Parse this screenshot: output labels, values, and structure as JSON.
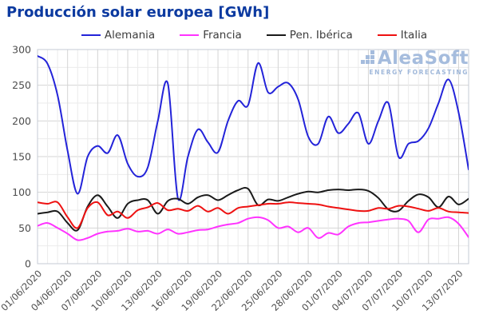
{
  "title": "Producción solar europea [GWh]",
  "watermark": {
    "name": "AleaSoft",
    "tagline": "ENERGY FORECASTING"
  },
  "colors": {
    "title": "#0c3aa0",
    "axis_text": "#4d4d4d",
    "grid_minor": "#ebebeb",
    "grid_major": "#d4d4d4",
    "plot_border": "#c6cbd4",
    "watermark": "#a5bcdd"
  },
  "chart_data": {
    "type": "line",
    "title": "Producción solar europea [GWh]",
    "unit": "GWh",
    "x_start": "01/06/2020",
    "x_end": "14/07/2020",
    "frequency": "daily",
    "ylim": [
      0,
      300
    ],
    "y_ticks": [
      0,
      50,
      100,
      150,
      200,
      250,
      300
    ],
    "y_minor_step": 25,
    "x_tick_labels": [
      "01/06/2020",
      "04/06/2020",
      "07/06/2020",
      "10/06/2020",
      "13/06/2020",
      "16/06/2020",
      "19/06/2020",
      "22/06/2020",
      "25/06/2020",
      "28/06/2020",
      "01/07/2020",
      "04/07/2020",
      "07/07/2020",
      "10/07/2020",
      "13/07/2020"
    ],
    "x_tick_days": [
      0,
      3,
      6,
      9,
      12,
      15,
      18,
      21,
      24,
      27,
      30,
      33,
      36,
      39,
      42
    ],
    "grid": "on",
    "legend_position": "top",
    "series": [
      {
        "name": "Alemania",
        "color": "#2323d9",
        "values": [
          291,
          280,
          236,
          158,
          98,
          150,
          165,
          155,
          180,
          140,
          122,
          135,
          200,
          252,
          92,
          150,
          188,
          170,
          156,
          200,
          228,
          222,
          281,
          240,
          248,
          253,
          230,
          178,
          168,
          206,
          183,
          196,
          211,
          168,
          200,
          225,
          150,
          168,
          172,
          190,
          225,
          258,
          212,
          132
        ]
      },
      {
        "name": "Francia",
        "color": "#ff33ff",
        "values": [
          53,
          57,
          50,
          42,
          33,
          36,
          42,
          45,
          46,
          49,
          45,
          46,
          42,
          48,
          42,
          44,
          47,
          48,
          52,
          55,
          57,
          63,
          65,
          61,
          50,
          52,
          44,
          50,
          36,
          43,
          41,
          52,
          57,
          58,
          60,
          62,
          63,
          60,
          44,
          62,
          63,
          65,
          56,
          37
        ]
      },
      {
        "name": "Pen. Ibérica",
        "color": "#1a1a1a",
        "values": [
          70,
          72,
          73,
          57,
          47,
          80,
          96,
          80,
          64,
          84,
          89,
          89,
          70,
          88,
          91,
          84,
          93,
          96,
          89,
          96,
          103,
          105,
          82,
          90,
          88,
          93,
          98,
          101,
          100,
          103,
          104,
          103,
          104,
          102,
          92,
          76,
          74,
          88,
          97,
          93,
          79,
          94,
          83,
          91
        ]
      },
      {
        "name": "Italia",
        "color": "#ee1111",
        "values": [
          86,
          84,
          86,
          65,
          50,
          78,
          86,
          68,
          73,
          64,
          75,
          79,
          85,
          75,
          77,
          74,
          81,
          73,
          78,
          70,
          78,
          80,
          82,
          84,
          84,
          86,
          85,
          84,
          83,
          80,
          78,
          76,
          74,
          74,
          78,
          77,
          81,
          80,
          77,
          74,
          78,
          73,
          72,
          71
        ]
      }
    ]
  }
}
